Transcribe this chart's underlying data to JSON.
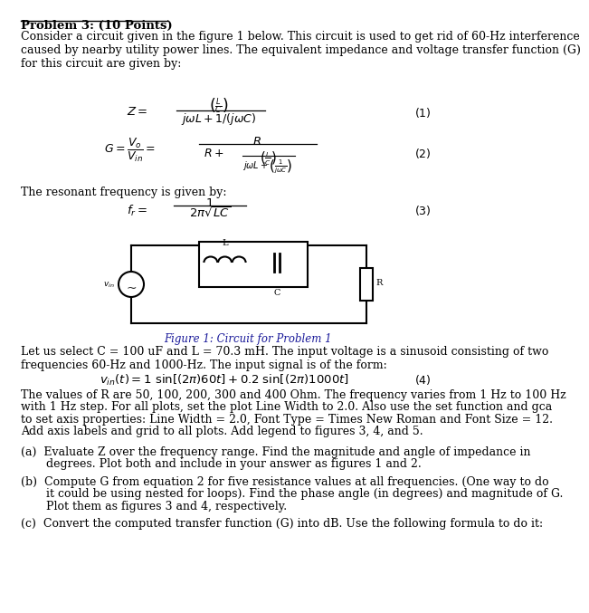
{
  "bg_color": "#ffffff",
  "text_color": "#000000",
  "title": "Problem 3: (10 Points)",
  "para1": "Consider a circuit given in the figure 1 below. This circuit is used to get rid of 60-Hz interference\ncaused by nearby utility power lines. The equivalent impedance and voltage transfer function (G)\nfor this circuit are given by:",
  "para_resonant": "The resonant frequency is given by:",
  "fig_caption": "Figure 1: Circuit for Problem 1",
  "para2": "Let us select C = 100 uF and L = 70.3 mH. The input voltage is a sinusoid consisting of two\nfrequencies 60-Hz and 1000-Hz. The input signal is of the form:",
  "para3_line1": "The values of R are 50, 100, 200, 300 and 400 Ohm. The frequency varies from 1 Hz to 100 Hz",
  "para3_line2": "with 1 Hz step. For all plots, set the plot Line Width to 2.0. Also use the set function and gca",
  "para3_line3": "to set axis properties: Line Width = 2.0, Font Type = Times New Roman and Font Size = 12.",
  "para3_line4": "Add axis labels and grid to all plots. Add legend to figures 3, 4, and 5.",
  "part_a1": "(a)  Evaluate Z over the frequency range. Find the magnitude and angle of impedance in",
  "part_a2": "       degrees. Plot both and include in your answer as figures 1 and 2.",
  "part_b1": "(b)  Compute G from equation 2 for five resistance values at all frequencies. (One way to do",
  "part_b2": "       it could be using nested for loops). Find the phase angle (in degrees) and magnitude of G.",
  "part_b3": "       Plot them as figures 3 and 4, respectively.",
  "part_c1": "(c)  Convert the computed transfer function (G) into dB. Use the following formula to do it:"
}
